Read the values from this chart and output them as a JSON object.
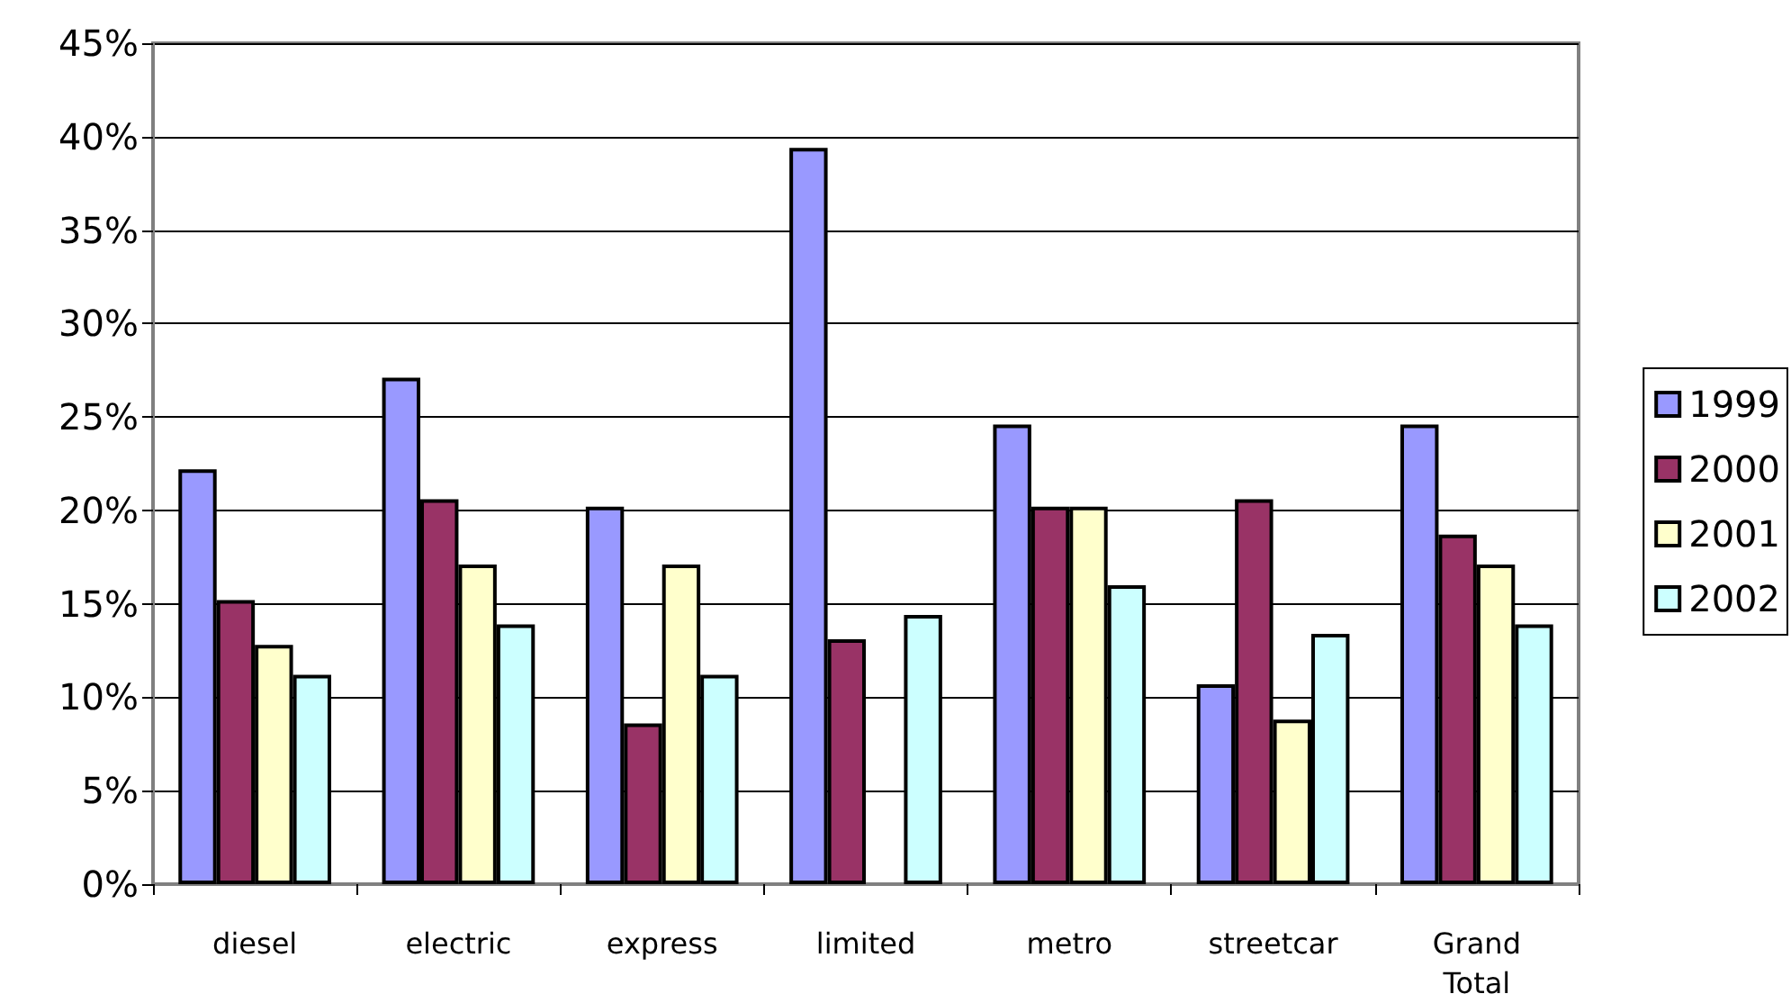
{
  "chart_data": {
    "type": "bar",
    "categories": [
      "diesel",
      "electric",
      "express",
      "limited",
      "metro",
      "streetcar",
      "Grand\nTotal"
    ],
    "series": [
      {
        "name": "1999",
        "color": "#9999ff",
        "values": [
          22.2,
          27.1,
          20.2,
          39.4,
          24.6,
          10.7,
          24.6
        ]
      },
      {
        "name": "2000",
        "color": "#993366",
        "values": [
          15.2,
          20.6,
          8.6,
          13.1,
          20.2,
          20.6,
          18.7
        ]
      },
      {
        "name": "2001",
        "color": "#ffffcc",
        "values": [
          12.8,
          17.1,
          17.1,
          null,
          20.2,
          8.8,
          17.1
        ]
      },
      {
        "name": "2002",
        "color": "#ccffff",
        "values": [
          11.2,
          13.9,
          11.2,
          14.4,
          16.0,
          13.4,
          13.9
        ]
      }
    ],
    "ylim": [
      0,
      45
    ],
    "yticks": [
      {
        "value": 0,
        "label": "0%"
      },
      {
        "value": 5,
        "label": "5%"
      },
      {
        "value": 10,
        "label": "10%"
      },
      {
        "value": 15,
        "label": "15%"
      },
      {
        "value": 20,
        "label": "20%"
      },
      {
        "value": 25,
        "label": "25%"
      },
      {
        "value": 30,
        "label": "30%"
      },
      {
        "value": 35,
        "label": "35%"
      },
      {
        "value": 40,
        "label": "40%"
      },
      {
        "value": 45,
        "label": "45%"
      }
    ],
    "grid": "y",
    "legend": "right"
  }
}
